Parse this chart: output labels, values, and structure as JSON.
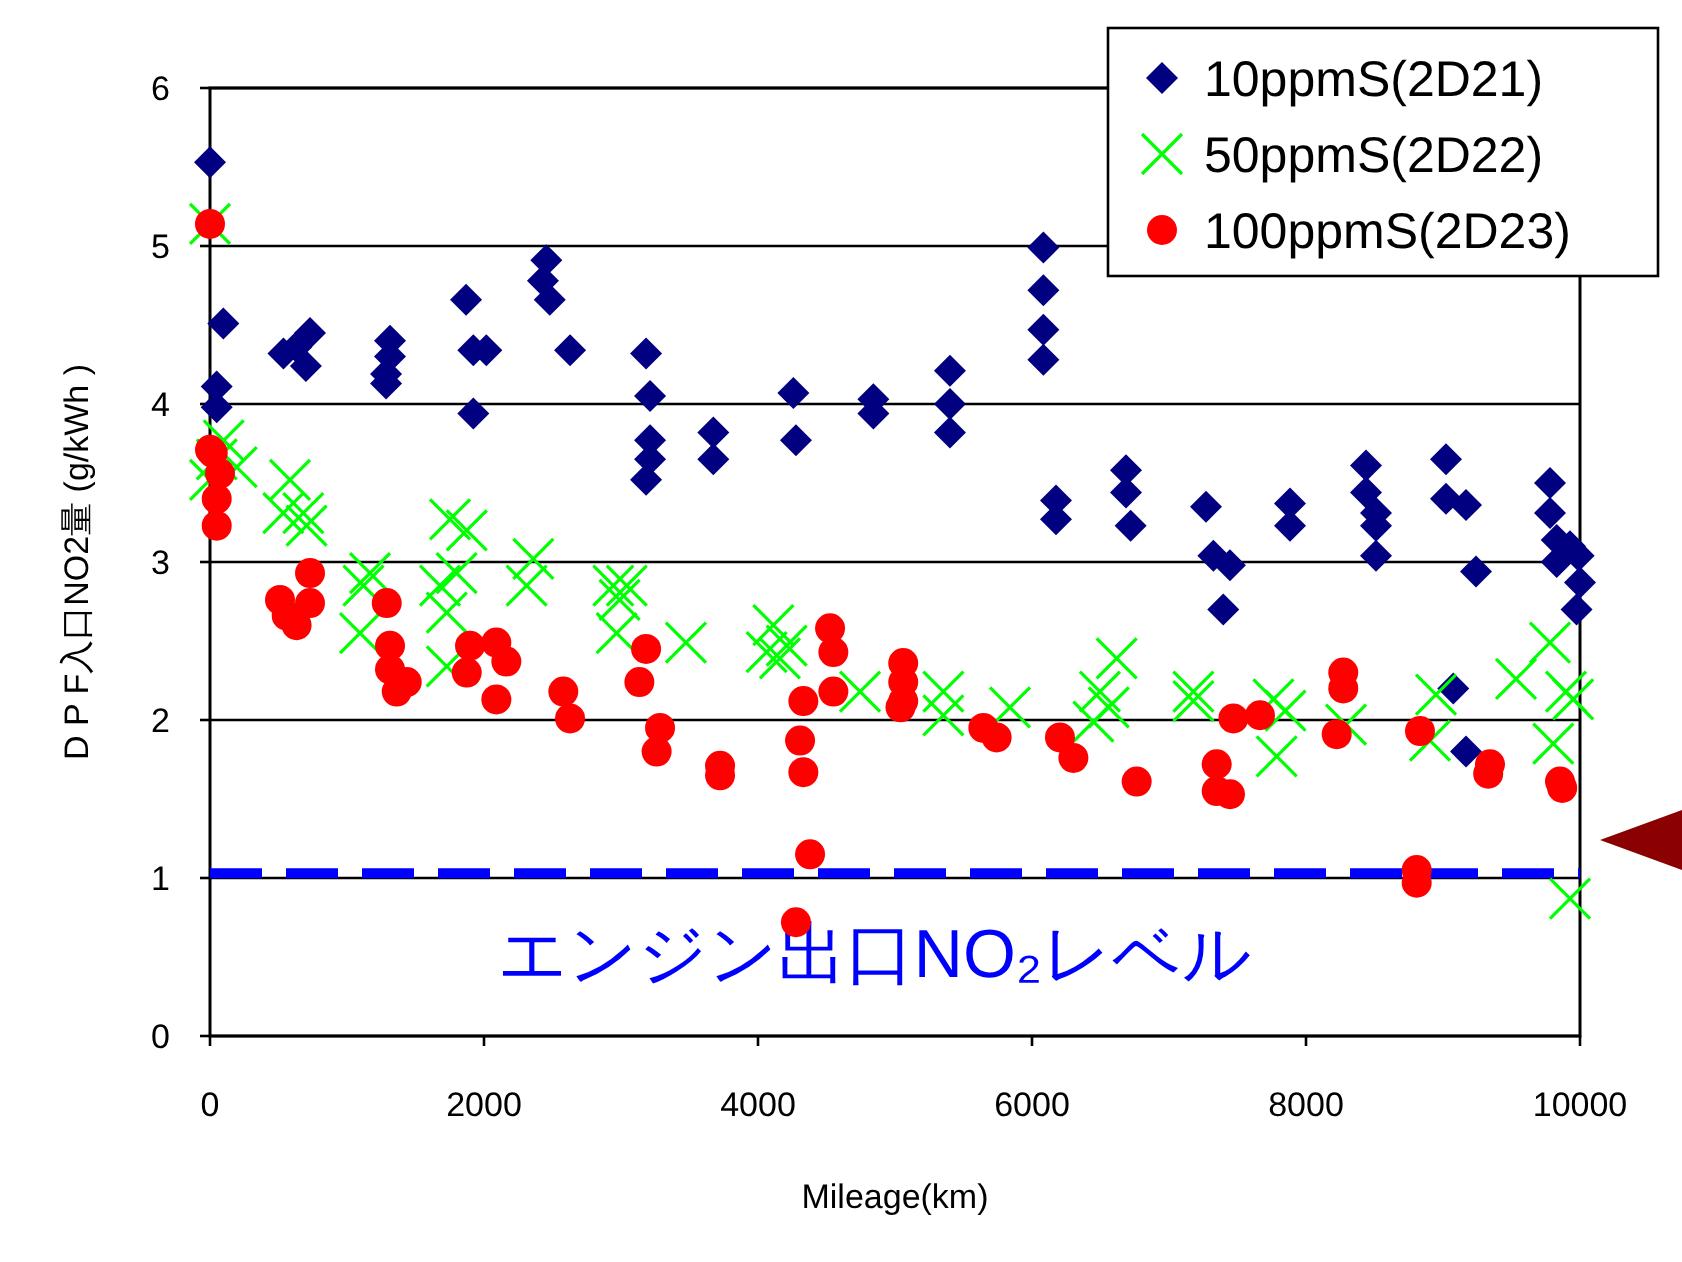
{
  "chart_data": {
    "type": "scatter",
    "xlabel": "Mileage(km)",
    "ylabel": "D P F入口NO2量 (g/kWh )",
    "xlim": [
      0,
      10000
    ],
    "ylim": [
      0,
      6
    ],
    "xticks": [
      0,
      2000,
      4000,
      6000,
      8000,
      10000
    ],
    "yticks": [
      0,
      1,
      2,
      3,
      4,
      5,
      6
    ],
    "grid": "y",
    "legend": "top right",
    "ref_lines": [
      {
        "axis": "y",
        "value": 1.03,
        "label": "エンジン出口NO₂レベル",
        "color": "#0000ff",
        "line_style": "dashed"
      }
    ],
    "series": [
      {
        "name": "10ppmS(2D21)",
        "color": "#000080",
        "marker": "diamond",
        "x": [
          0,
          97,
          49,
          49,
          536,
          631,
          730,
          700,
          1314,
          1314,
          1285,
          1285,
          1869,
          1922,
          2017,
          1922,
          2455,
          2430,
          2480,
          2628,
          3183,
          3212,
          3212,
          3212,
          3183,
          3674,
          3674,
          4258,
          4277,
          4842,
          4842,
          5401,
          5401,
          5401,
          6083,
          6083,
          6083,
          6083,
          6175,
          6175,
          6686,
          6686,
          6720,
          7270,
          7324,
          7445,
          7396,
          7883,
          7883,
          8438,
          8438,
          8511,
          8511,
          8511,
          9022,
          9022,
          9168,
          9241,
          9075,
          9168,
          9781,
          9781,
          9830,
          9830,
          9927,
          9990,
          10000,
          9975
        ],
        "values": [
          5.53,
          4.51,
          4.11,
          3.98,
          4.32,
          4.36,
          4.45,
          4.24,
          4.4,
          4.3,
          4.19,
          4.13,
          4.66,
          4.34,
          4.34,
          3.94,
          4.91,
          4.78,
          4.66,
          4.34,
          4.32,
          4.05,
          3.77,
          3.65,
          3.52,
          3.82,
          3.65,
          4.07,
          3.77,
          4.03,
          3.94,
          4.21,
          4.0,
          3.82,
          4.99,
          4.72,
          4.47,
          4.28,
          3.39,
          3.27,
          3.58,
          3.44,
          3.23,
          3.35,
          3.04,
          2.98,
          2.7,
          3.37,
          3.23,
          3.61,
          3.44,
          3.31,
          3.23,
          3.04,
          3.65,
          3.4,
          3.36,
          2.94,
          2.2,
          1.8,
          3.5,
          3.31,
          3.14,
          3.0,
          3.1,
          3.04,
          2.87,
          2.7
        ]
      },
      {
        "name": "50ppmS(2D22)",
        "color": "#00ff00",
        "marker": "cross",
        "x": [
          0,
          100,
          49,
          195,
          0,
          584,
          535,
          681,
          705,
          1168,
          1120,
          1095,
          1752,
          1874,
          1679,
          1728,
          1800,
          1728,
          2360,
          2311,
          2944,
          3042,
          2968,
          2990,
          3474,
          4112,
          4063,
          4209,
          4160,
          4745,
          5353,
          5353,
          5839,
          6618,
          6496,
          6448,
          6560,
          7178,
          7178,
          7762,
          7850,
          7786,
          8292,
          8949,
          8905,
          9533,
          9781,
          9898,
          9950,
          9805,
          9927
        ],
        "values": [
          5.14,
          3.77,
          3.65,
          3.6,
          3.52,
          3.52,
          3.31,
          3.31,
          3.23,
          2.93,
          2.85,
          2.55,
          3.27,
          3.2,
          2.85,
          2.68,
          2.93,
          2.34,
          3.02,
          2.85,
          2.85,
          2.85,
          2.55,
          2.76,
          2.49,
          2.6,
          2.43,
          2.47,
          2.39,
          2.18,
          2.18,
          2.03,
          2.08,
          2.39,
          2.18,
          1.99,
          2.08,
          2.18,
          2.12,
          2.13,
          2.06,
          1.77,
          1.97,
          2.16,
          1.87,
          2.26,
          2.49,
          2.18,
          2.13,
          1.85,
          0.87
        ]
      },
      {
        "name": "100ppmS(2D23)",
        "color": "#ff0000",
        "marker": "circle",
        "x": [
          0,
          0,
          73,
          20,
          49,
          49,
          511,
          632,
          730,
          730,
          560,
          1290,
          1314,
          1314,
          1363,
          1436,
          1898,
          1874,
          2090,
          2163,
          2090,
          2579,
          2628,
          3183,
          3134,
          3285,
          3260,
          3723,
          3723,
          4526,
          4550,
          4550,
          4331,
          4307,
          4331,
          4380,
          4277,
          5060,
          5060,
          5060,
          5040,
          5645,
          5742,
          6204,
          6302,
          6764,
          7348,
          7348,
          7445,
          7470,
          7664,
          8272,
          8272,
          8224,
          8832,
          8808,
          8808,
          9343,
          9330,
          9854,
          9870
        ],
        "values": [
          5.14,
          3.71,
          3.56,
          3.69,
          3.4,
          3.23,
          2.76,
          2.6,
          2.93,
          2.74,
          2.66,
          2.74,
          2.47,
          2.32,
          2.18,
          2.24,
          2.47,
          2.3,
          2.49,
          2.37,
          2.13,
          2.18,
          2.01,
          2.45,
          2.24,
          1.95,
          1.8,
          1.71,
          1.65,
          2.58,
          2.43,
          2.18,
          2.12,
          1.87,
          1.67,
          1.15,
          0.72,
          2.36,
          2.24,
          2.12,
          2.08,
          1.95,
          1.89,
          1.89,
          1.76,
          1.61,
          1.72,
          1.55,
          1.53,
          2.01,
          2.03,
          2.3,
          2.2,
          1.91,
          1.93,
          1.05,
          0.97,
          1.72,
          1.66,
          1.61,
          1.57
        ]
      }
    ]
  }
}
